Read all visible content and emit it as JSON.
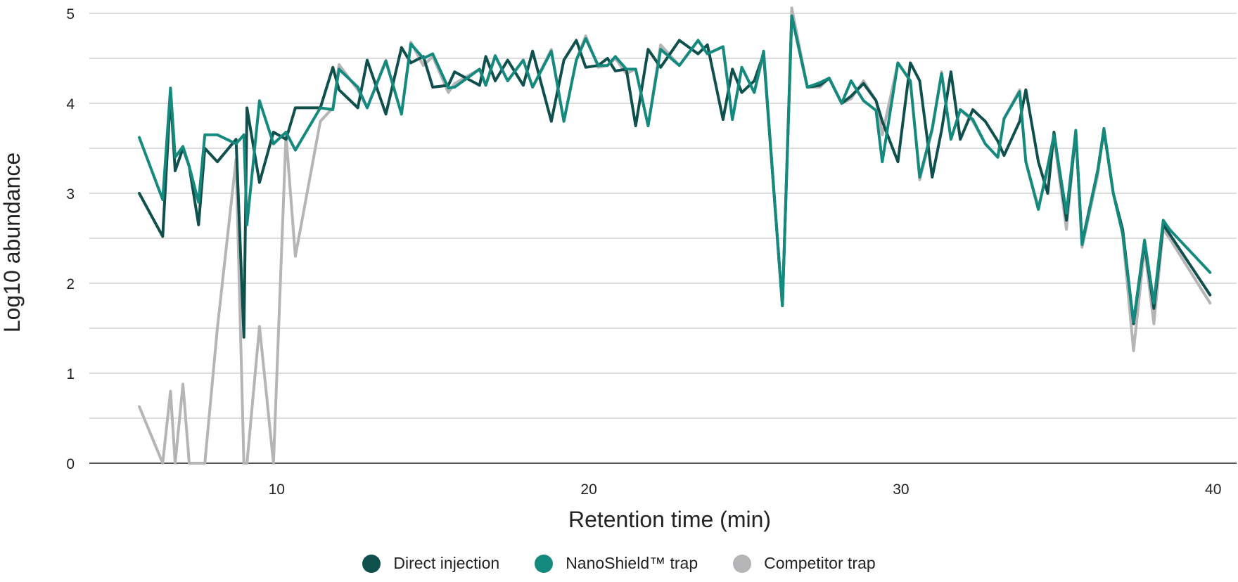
{
  "chart_data": {
    "type": "line",
    "title": "",
    "xlabel": "Retention time (min)",
    "ylabel": "Log10 abundance",
    "xlim": [
      4,
      40.75
    ],
    "ylim": [
      0,
      5
    ],
    "grid": true,
    "xticks": [
      10,
      20,
      30,
      40
    ],
    "xtick_labels": [
      "10",
      "20",
      "30",
      "40"
    ],
    "yticks": [
      0,
      1,
      2,
      3,
      4,
      5
    ],
    "ytick_labels": [
      "0",
      "1",
      "2",
      "3",
      "4",
      "5"
    ],
    "legend_position": "bottom",
    "x": [
      5.6,
      6.35,
      6.6,
      6.75,
      7.0,
      7.2,
      7.5,
      7.7,
      8.1,
      8.7,
      8.95,
      9.05,
      9.45,
      9.9,
      10.3,
      10.6,
      11.4,
      11.8,
      12.0,
      12.6,
      12.9,
      13.5,
      14.0,
      14.3,
      14.7,
      15.0,
      15.5,
      15.7,
      16.5,
      16.7,
      17.0,
      17.4,
      17.9,
      18.2,
      18.8,
      19.2,
      19.6,
      19.9,
      20.3,
      20.6,
      20.85,
      21.2,
      21.5,
      21.9,
      22.3,
      22.9,
      23.5,
      23.8,
      24.3,
      24.6,
      24.9,
      25.3,
      25.6,
      26.2,
      26.5,
      27.0,
      27.4,
      27.7,
      28.1,
      28.4,
      28.8,
      29.2,
      29.4,
      29.9,
      30.3,
      30.6,
      31.0,
      31.3,
      31.6,
      31.9,
      32.3,
      32.7,
      33.1,
      33.3,
      33.8,
      34.0,
      34.4,
      34.7,
      34.9,
      35.3,
      35.6,
      35.8,
      36.3,
      36.5,
      36.8,
      37.1,
      37.45,
      37.8,
      38.1,
      38.4,
      38.6,
      39.9
    ],
    "series": [
      {
        "name": "Direct injection",
        "color": "#0f4f4c",
        "values": [
          3.0,
          2.52,
          4.1,
          3.25,
          3.5,
          3.3,
          2.65,
          3.5,
          3.35,
          3.6,
          1.4,
          3.95,
          3.12,
          3.68,
          3.6,
          3.95,
          3.95,
          4.4,
          4.15,
          3.95,
          4.48,
          3.88,
          4.62,
          4.45,
          4.52,
          4.18,
          4.2,
          4.35,
          4.2,
          4.52,
          4.25,
          4.48,
          4.2,
          4.58,
          3.8,
          4.48,
          4.7,
          4.4,
          4.42,
          4.5,
          4.36,
          4.38,
          3.75,
          4.6,
          4.4,
          4.7,
          4.55,
          4.65,
          3.82,
          4.38,
          4.12,
          4.25,
          4.55,
          1.75,
          4.97,
          4.18,
          4.2,
          4.28,
          4.0,
          4.08,
          4.22,
          4.03,
          3.8,
          3.35,
          4.45,
          4.25,
          3.18,
          3.7,
          4.35,
          3.6,
          3.93,
          3.8,
          3.58,
          3.42,
          3.8,
          4.15,
          3.35,
          3.0,
          3.68,
          2.7,
          3.68,
          2.45,
          3.25,
          3.7,
          3.0,
          2.6,
          1.55,
          2.45,
          1.72,
          2.65,
          2.55,
          1.87
        ]
      },
      {
        "name": "NanoShield™ trap",
        "color": "#14897d",
        "values": [
          3.62,
          2.93,
          4.17,
          3.4,
          3.52,
          3.3,
          2.9,
          3.65,
          3.65,
          3.55,
          3.65,
          2.65,
          4.03,
          3.55,
          3.68,
          3.48,
          3.95,
          3.93,
          4.38,
          4.18,
          3.95,
          4.47,
          3.88,
          4.66,
          4.5,
          4.55,
          4.17,
          4.18,
          4.38,
          4.2,
          4.53,
          4.25,
          4.48,
          4.18,
          4.58,
          3.8,
          4.48,
          4.72,
          4.42,
          4.42,
          4.52,
          4.38,
          4.38,
          3.75,
          4.6,
          4.42,
          4.7,
          4.55,
          4.63,
          3.82,
          4.4,
          4.12,
          4.58,
          1.75,
          4.97,
          4.18,
          4.23,
          4.28,
          4.0,
          4.25,
          4.03,
          3.92,
          3.35,
          4.45,
          4.25,
          3.18,
          3.72,
          4.33,
          3.6,
          3.93,
          3.82,
          3.55,
          3.4,
          3.83,
          4.13,
          3.35,
          2.82,
          3.3,
          3.65,
          2.78,
          3.7,
          2.43,
          3.25,
          3.72,
          3.0,
          2.55,
          1.57,
          2.48,
          1.78,
          2.7,
          2.6,
          2.12
        ]
      },
      {
        "name": "Competitor trap",
        "color": "#b5b5b7",
        "values": [
          0.63,
          0.0,
          0.8,
          0.0,
          0.88,
          0.0,
          0.0,
          0.0,
          1.5,
          3.38,
          0.0,
          0.0,
          1.52,
          0.0,
          3.65,
          2.3,
          3.8,
          3.95,
          4.43,
          4.15,
          3.95,
          4.48,
          3.88,
          4.68,
          4.42,
          4.52,
          4.12,
          4.22,
          4.38,
          4.2,
          4.52,
          4.25,
          4.48,
          4.18,
          4.6,
          3.8,
          4.48,
          4.75,
          4.4,
          4.42,
          4.5,
          4.33,
          4.38,
          3.75,
          4.65,
          4.42,
          4.7,
          4.55,
          4.63,
          3.82,
          4.4,
          4.12,
          4.55,
          1.75,
          5.06,
          4.18,
          4.18,
          4.28,
          4.0,
          4.05,
          4.25,
          4.03,
          3.65,
          4.45,
          4.25,
          3.15,
          3.7,
          4.35,
          3.6,
          3.93,
          3.8,
          3.55,
          3.4,
          3.83,
          4.15,
          3.35,
          2.85,
          3.25,
          3.62,
          2.6,
          3.68,
          2.4,
          3.2,
          3.7,
          3.0,
          2.55,
          1.25,
          2.4,
          1.55,
          2.6,
          2.5,
          1.78
        ]
      }
    ]
  }
}
